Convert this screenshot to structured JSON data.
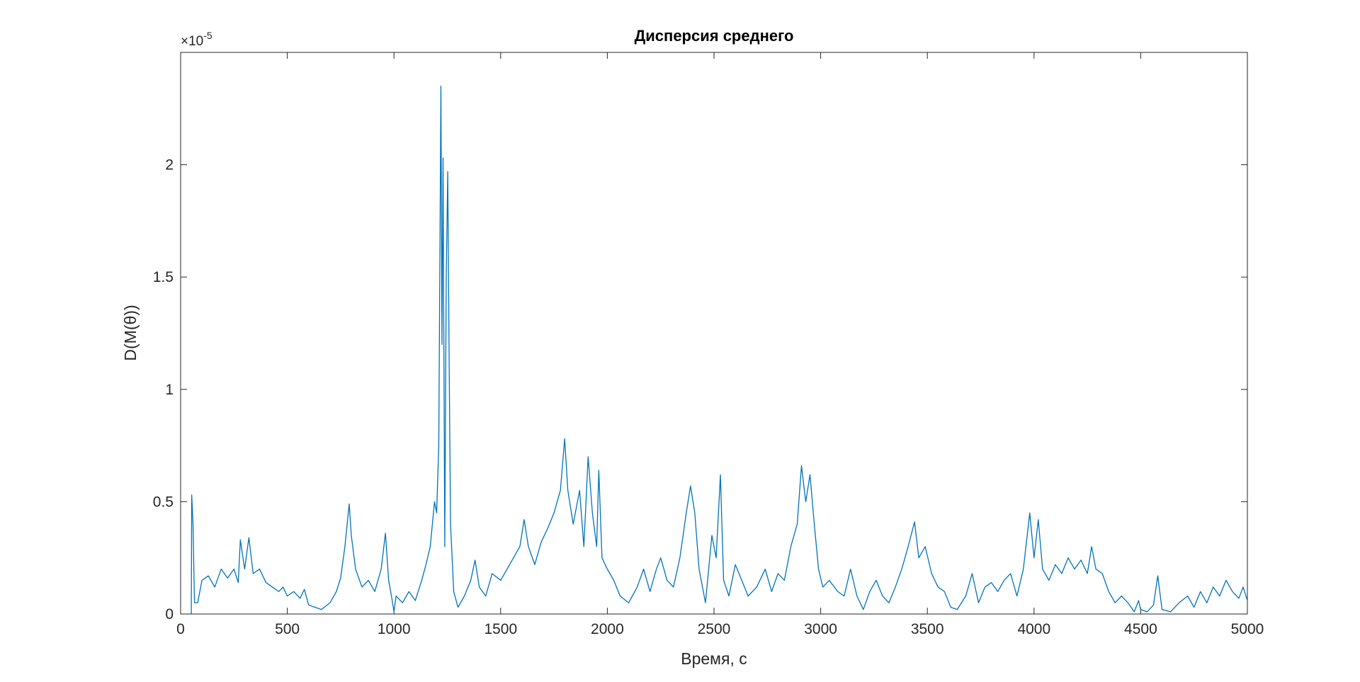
{
  "chart_data": {
    "type": "line",
    "title": "Дисперсия среднего",
    "x_label": "Время, с",
    "y_label": "D(M(θ))",
    "y_multiplier": {
      "base": "×10",
      "exponent": "-5"
    },
    "xlim": [
      0,
      5000
    ],
    "xticks": [
      0,
      500,
      1000,
      1500,
      2000,
      2500,
      3000,
      3500,
      4000,
      4500,
      5000
    ],
    "ylim": [
      0,
      2.5
    ],
    "yticks": [
      0,
      0.5,
      1,
      1.5,
      2
    ],
    "grid": false,
    "series": [
      {
        "color": "#0072bd",
        "x": [
          50,
          52,
          58,
          65,
          80,
          100,
          130,
          160,
          190,
          220,
          250,
          270,
          280,
          300,
          320,
          340,
          370,
          400,
          430,
          460,
          480,
          500,
          530,
          560,
          580,
          600,
          630,
          660,
          700,
          730,
          750,
          770,
          790,
          800,
          820,
          850,
          880,
          910,
          940,
          960,
          975,
          990,
          1000,
          1010,
          1040,
          1070,
          1100,
          1130,
          1150,
          1170,
          1190,
          1200,
          1210,
          1215,
          1220,
          1225,
          1230,
          1238,
          1245,
          1252,
          1258,
          1265,
          1280,
          1300,
          1330,
          1360,
          1380,
          1400,
          1430,
          1460,
          1500,
          1530,
          1560,
          1590,
          1610,
          1630,
          1660,
          1690,
          1720,
          1750,
          1780,
          1800,
          1815,
          1840,
          1870,
          1890,
          1910,
          1930,
          1950,
          1960,
          1975,
          2000,
          2030,
          2060,
          2100,
          2140,
          2170,
          2200,
          2230,
          2250,
          2280,
          2310,
          2340,
          2370,
          2390,
          2410,
          2430,
          2460,
          2490,
          2510,
          2530,
          2545,
          2570,
          2600,
          2630,
          2660,
          2700,
          2740,
          2770,
          2800,
          2830,
          2860,
          2890,
          2910,
          2930,
          2950,
          2970,
          2990,
          3010,
          3040,
          3080,
          3110,
          3140,
          3170,
          3200,
          3230,
          3260,
          3290,
          3320,
          3350,
          3380,
          3410,
          3440,
          3460,
          3490,
          3520,
          3550,
          3580,
          3610,
          3640,
          3680,
          3710,
          3740,
          3770,
          3800,
          3830,
          3860,
          3890,
          3920,
          3950,
          3980,
          4000,
          4020,
          4040,
          4070,
          4100,
          4130,
          4160,
          4190,
          4220,
          4250,
          4270,
          4290,
          4320,
          4350,
          4380,
          4410,
          4440,
          4470,
          4490,
          4500,
          4530,
          4560,
          4580,
          4600,
          4640,
          4680,
          4720,
          4750,
          4780,
          4810,
          4840,
          4870,
          4900,
          4930,
          4960,
          4980,
          5000
        ],
        "values": [
          0,
          0.53,
          0.4,
          0.05,
          0.05,
          0.15,
          0.17,
          0.12,
          0.2,
          0.16,
          0.2,
          0.14,
          0.33,
          0.2,
          0.34,
          0.18,
          0.2,
          0.14,
          0.12,
          0.1,
          0.12,
          0.08,
          0.1,
          0.07,
          0.11,
          0.04,
          0.03,
          0.02,
          0.05,
          0.1,
          0.16,
          0.3,
          0.49,
          0.35,
          0.2,
          0.12,
          0.15,
          0.1,
          0.2,
          0.36,
          0.15,
          0.07,
          0.01,
          0.08,
          0.05,
          0.1,
          0.06,
          0.15,
          0.22,
          0.3,
          0.5,
          0.45,
          0.75,
          1.55,
          2.35,
          1.2,
          2.03,
          0.3,
          1.5,
          1.97,
          1.2,
          0.4,
          0.1,
          0.03,
          0.08,
          0.15,
          0.24,
          0.12,
          0.08,
          0.18,
          0.15,
          0.2,
          0.25,
          0.3,
          0.42,
          0.3,
          0.22,
          0.32,
          0.38,
          0.45,
          0.55,
          0.78,
          0.55,
          0.4,
          0.55,
          0.3,
          0.7,
          0.45,
          0.3,
          0.64,
          0.25,
          0.2,
          0.15,
          0.08,
          0.05,
          0.12,
          0.2,
          0.1,
          0.2,
          0.25,
          0.15,
          0.12,
          0.25,
          0.45,
          0.57,
          0.45,
          0.2,
          0.05,
          0.35,
          0.25,
          0.62,
          0.15,
          0.08,
          0.22,
          0.15,
          0.08,
          0.12,
          0.2,
          0.1,
          0.18,
          0.15,
          0.3,
          0.4,
          0.66,
          0.5,
          0.62,
          0.4,
          0.2,
          0.12,
          0.15,
          0.1,
          0.08,
          0.2,
          0.08,
          0.02,
          0.1,
          0.15,
          0.08,
          0.05,
          0.12,
          0.2,
          0.3,
          0.41,
          0.25,
          0.3,
          0.18,
          0.12,
          0.1,
          0.03,
          0.02,
          0.08,
          0.18,
          0.05,
          0.12,
          0.14,
          0.1,
          0.15,
          0.18,
          0.08,
          0.2,
          0.45,
          0.25,
          0.42,
          0.2,
          0.15,
          0.22,
          0.18,
          0.25,
          0.2,
          0.24,
          0.18,
          0.3,
          0.2,
          0.18,
          0.1,
          0.05,
          0.08,
          0.05,
          0.01,
          0.06,
          0.02,
          0.01,
          0.04,
          0.17,
          0.02,
          0.01,
          0.05,
          0.08,
          0.03,
          0.1,
          0.05,
          0.12,
          0.08,
          0.15,
          0.1,
          0.07,
          0.12,
          0.06
        ]
      }
    ]
  }
}
